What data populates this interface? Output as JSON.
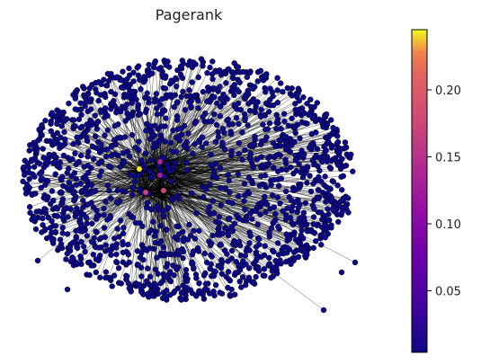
{
  "chart_data": {
    "type": "scatter",
    "title": "Pagerank",
    "xlabel": "",
    "ylabel": "",
    "colorbar": {
      "colormap": "plasma",
      "range": [
        0.004,
        0.245
      ],
      "ticks": [
        0.05,
        0.1,
        0.15,
        0.2
      ],
      "tick_labels": [
        "0.05",
        "0.10",
        "0.15",
        "0.20"
      ]
    },
    "default_node_value": 0.004,
    "highlighted_nodes": [
      {
        "value": 0.243
      },
      {
        "value": 0.135
      },
      {
        "value": 0.125
      },
      {
        "value": 0.17
      },
      {
        "value": 0.175
      }
    ],
    "edge_color": "#000000",
    "node_edge_color": "#000000"
  }
}
